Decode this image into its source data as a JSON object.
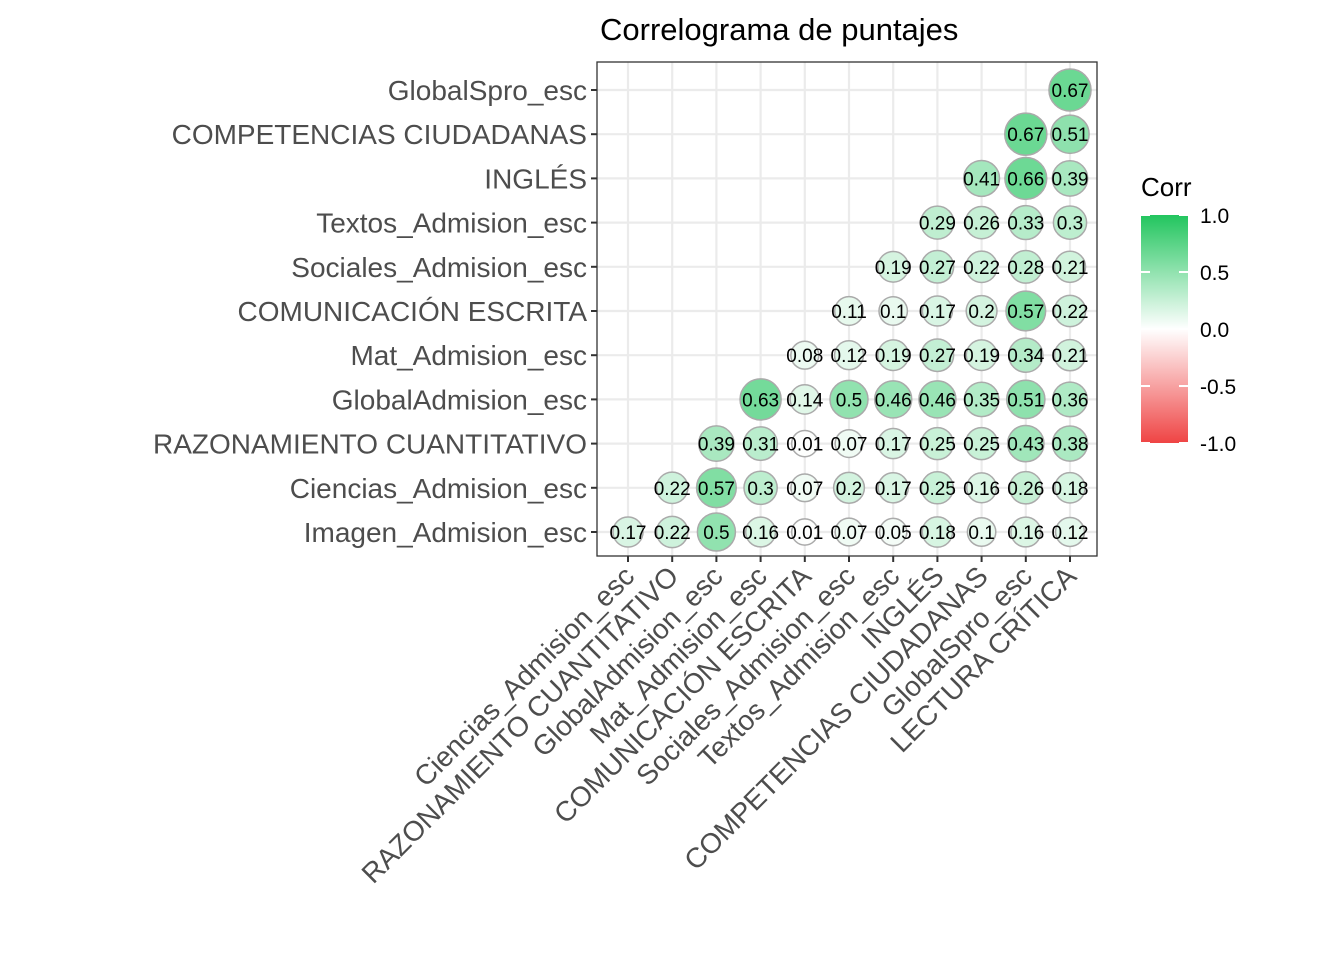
{
  "chart_data": {
    "type": "heatmap",
    "subtype": "correlogram-circles-lower-triangle",
    "title": "Correlograma de puntajes",
    "x_categories": [
      "Ciencias_Admision_esc",
      "RAZONAMIENTO CUANTITATIVO",
      "GlobalAdmision_esc",
      "Mat_Admision_esc",
      "COMUNICACIÓN ESCRITA",
      "Sociales_Admision_esc",
      "Textos_Admision_esc",
      "INGLÉS",
      "COMPETENCIAS CIUDADANAS",
      "GlobalSpro_esc",
      "LECTURA CRÍTICA"
    ],
    "y_categories": [
      "Imagen_Admision_esc",
      "Ciencias_Admision_esc",
      "RAZONAMIENTO CUANTITATIVO",
      "GlobalAdmision_esc",
      "Mat_Admision_esc",
      "COMUNICACIÓN ESCRITA",
      "Sociales_Admision_esc",
      "Textos_Admision_esc",
      "INGLÉS",
      "COMPETENCIAS CIUDADANAS",
      "GlobalSpro_esc"
    ],
    "cells": [
      {
        "x": "Ciencias_Admision_esc",
        "y": "Imagen_Admision_esc",
        "value": 0.17,
        "label": "0.17"
      },
      {
        "x": "RAZONAMIENTO CUANTITATIVO",
        "y": "Imagen_Admision_esc",
        "value": 0.22,
        "label": "0.22"
      },
      {
        "x": "GlobalAdmision_esc",
        "y": "Imagen_Admision_esc",
        "value": 0.5,
        "label": "0.5"
      },
      {
        "x": "Mat_Admision_esc",
        "y": "Imagen_Admision_esc",
        "value": 0.16,
        "label": "0.16"
      },
      {
        "x": "COMUNICACIÓN ESCRITA",
        "y": "Imagen_Admision_esc",
        "value": 0.01,
        "label": "0.01"
      },
      {
        "x": "Sociales_Admision_esc",
        "y": "Imagen_Admision_esc",
        "value": 0.07,
        "label": "0.07"
      },
      {
        "x": "Textos_Admision_esc",
        "y": "Imagen_Admision_esc",
        "value": 0.05,
        "label": "0.05"
      },
      {
        "x": "INGLÉS",
        "y": "Imagen_Admision_esc",
        "value": 0.18,
        "label": "0.18"
      },
      {
        "x": "COMPETENCIAS CIUDADANAS",
        "y": "Imagen_Admision_esc",
        "value": 0.1,
        "label": "0.1"
      },
      {
        "x": "GlobalSpro_esc",
        "y": "Imagen_Admision_esc",
        "value": 0.16,
        "label": "0.16"
      },
      {
        "x": "LECTURA CRÍTICA",
        "y": "Imagen_Admision_esc",
        "value": 0.12,
        "label": "0.12"
      },
      {
        "x": "RAZONAMIENTO CUANTITATIVO",
        "y": "Ciencias_Admision_esc",
        "value": 0.22,
        "label": "0.22"
      },
      {
        "x": "GlobalAdmision_esc",
        "y": "Ciencias_Admision_esc",
        "value": 0.57,
        "label": "0.57"
      },
      {
        "x": "Mat_Admision_esc",
        "y": "Ciencias_Admision_esc",
        "value": 0.3,
        "label": "0.3"
      },
      {
        "x": "COMUNICACIÓN ESCRITA",
        "y": "Ciencias_Admision_esc",
        "value": 0.07,
        "label": "0.07"
      },
      {
        "x": "Sociales_Admision_esc",
        "y": "Ciencias_Admision_esc",
        "value": 0.2,
        "label": "0.2"
      },
      {
        "x": "Textos_Admision_esc",
        "y": "Ciencias_Admision_esc",
        "value": 0.17,
        "label": "0.17"
      },
      {
        "x": "INGLÉS",
        "y": "Ciencias_Admision_esc",
        "value": 0.25,
        "label": "0.25"
      },
      {
        "x": "COMPETENCIAS CIUDADANAS",
        "y": "Ciencias_Admision_esc",
        "value": 0.16,
        "label": "0.16"
      },
      {
        "x": "GlobalSpro_esc",
        "y": "Ciencias_Admision_esc",
        "value": 0.26,
        "label": "0.26"
      },
      {
        "x": "LECTURA CRÍTICA",
        "y": "Ciencias_Admision_esc",
        "value": 0.18,
        "label": "0.18"
      },
      {
        "x": "GlobalAdmision_esc",
        "y": "RAZONAMIENTO CUANTITATIVO",
        "value": 0.39,
        "label": "0.39"
      },
      {
        "x": "Mat_Admision_esc",
        "y": "RAZONAMIENTO CUANTITATIVO",
        "value": 0.31,
        "label": "0.31"
      },
      {
        "x": "COMUNICACIÓN ESCRITA",
        "y": "RAZONAMIENTO CUANTITATIVO",
        "value": 0.01,
        "label": "0.01"
      },
      {
        "x": "Sociales_Admision_esc",
        "y": "RAZONAMIENTO CUANTITATIVO",
        "value": 0.07,
        "label": "0.07"
      },
      {
        "x": "Textos_Admision_esc",
        "y": "RAZONAMIENTO CUANTITATIVO",
        "value": 0.17,
        "label": "0.17"
      },
      {
        "x": "INGLÉS",
        "y": "RAZONAMIENTO CUANTITATIVO",
        "value": 0.25,
        "label": "0.25"
      },
      {
        "x": "COMPETENCIAS CIUDADANAS",
        "y": "RAZONAMIENTO CUANTITATIVO",
        "value": 0.25,
        "label": "0.25"
      },
      {
        "x": "GlobalSpro_esc",
        "y": "RAZONAMIENTO CUANTITATIVO",
        "value": 0.43,
        "label": "0.43"
      },
      {
        "x": "LECTURA CRÍTICA",
        "y": "RAZONAMIENTO CUANTITATIVO",
        "value": 0.38,
        "label": "0.38"
      },
      {
        "x": "Mat_Admision_esc",
        "y": "GlobalAdmision_esc",
        "value": 0.63,
        "label": "0.63"
      },
      {
        "x": "COMUNICACIÓN ESCRITA",
        "y": "GlobalAdmision_esc",
        "value": 0.14,
        "label": "0.14"
      },
      {
        "x": "Sociales_Admision_esc",
        "y": "GlobalAdmision_esc",
        "value": 0.5,
        "label": "0.5"
      },
      {
        "x": "Textos_Admision_esc",
        "y": "GlobalAdmision_esc",
        "value": 0.46,
        "label": "0.46"
      },
      {
        "x": "INGLÉS",
        "y": "GlobalAdmision_esc",
        "value": 0.46,
        "label": "0.46"
      },
      {
        "x": "COMPETENCIAS CIUDADANAS",
        "y": "GlobalAdmision_esc",
        "value": 0.35,
        "label": "0.35"
      },
      {
        "x": "GlobalSpro_esc",
        "y": "GlobalAdmision_esc",
        "value": 0.51,
        "label": "0.51"
      },
      {
        "x": "LECTURA CRÍTICA",
        "y": "GlobalAdmision_esc",
        "value": 0.36,
        "label": "0.36"
      },
      {
        "x": "COMUNICACIÓN ESCRITA",
        "y": "Mat_Admision_esc",
        "value": 0.08,
        "label": "0.08"
      },
      {
        "x": "Sociales_Admision_esc",
        "y": "Mat_Admision_esc",
        "value": 0.12,
        "label": "0.12"
      },
      {
        "x": "Textos_Admision_esc",
        "y": "Mat_Admision_esc",
        "value": 0.19,
        "label": "0.19"
      },
      {
        "x": "INGLÉS",
        "y": "Mat_Admision_esc",
        "value": 0.27,
        "label": "0.27"
      },
      {
        "x": "COMPETENCIAS CIUDADANAS",
        "y": "Mat_Admision_esc",
        "value": 0.19,
        "label": "0.19"
      },
      {
        "x": "GlobalSpro_esc",
        "y": "Mat_Admision_esc",
        "value": 0.34,
        "label": "0.34"
      },
      {
        "x": "LECTURA CRÍTICA",
        "y": "Mat_Admision_esc",
        "value": 0.21,
        "label": "0.21"
      },
      {
        "x": "Sociales_Admision_esc",
        "y": "COMUNICACIÓN ESCRITA",
        "value": 0.11,
        "label": "0.11"
      },
      {
        "x": "Textos_Admision_esc",
        "y": "COMUNICACIÓN ESCRITA",
        "value": 0.1,
        "label": "0.1"
      },
      {
        "x": "INGLÉS",
        "y": "COMUNICACIÓN ESCRITA",
        "value": 0.17,
        "label": "0.17"
      },
      {
        "x": "COMPETENCIAS CIUDADANAS",
        "y": "COMUNICACIÓN ESCRITA",
        "value": 0.2,
        "label": "0.2"
      },
      {
        "x": "GlobalSpro_esc",
        "y": "COMUNICACIÓN ESCRITA",
        "value": 0.57,
        "label": "0.57"
      },
      {
        "x": "LECTURA CRÍTICA",
        "y": "COMUNICACIÓN ESCRITA",
        "value": 0.22,
        "label": "0.22"
      },
      {
        "x": "Textos_Admision_esc",
        "y": "Sociales_Admision_esc",
        "value": 0.19,
        "label": "0.19"
      },
      {
        "x": "INGLÉS",
        "y": "Sociales_Admision_esc",
        "value": 0.27,
        "label": "0.27"
      },
      {
        "x": "COMPETENCIAS CIUDADANAS",
        "y": "Sociales_Admision_esc",
        "value": 0.22,
        "label": "0.22"
      },
      {
        "x": "GlobalSpro_esc",
        "y": "Sociales_Admision_esc",
        "value": 0.28,
        "label": "0.28"
      },
      {
        "x": "LECTURA CRÍTICA",
        "y": "Sociales_Admision_esc",
        "value": 0.21,
        "label": "0.21"
      },
      {
        "x": "INGLÉS",
        "y": "Textos_Admision_esc",
        "value": 0.29,
        "label": "0.29"
      },
      {
        "x": "COMPETENCIAS CIUDADANAS",
        "y": "Textos_Admision_esc",
        "value": 0.26,
        "label": "0.26"
      },
      {
        "x": "GlobalSpro_esc",
        "y": "Textos_Admision_esc",
        "value": 0.33,
        "label": "0.33"
      },
      {
        "x": "LECTURA CRÍTICA",
        "y": "Textos_Admision_esc",
        "value": 0.3,
        "label": "0.3"
      },
      {
        "x": "COMPETENCIAS CIUDADANAS",
        "y": "INGLÉS",
        "value": 0.41,
        "label": "0.41"
      },
      {
        "x": "GlobalSpro_esc",
        "y": "INGLÉS",
        "value": 0.66,
        "label": "0.66"
      },
      {
        "x": "LECTURA CRÍTICA",
        "y": "INGLÉS",
        "value": 0.39,
        "label": "0.39"
      },
      {
        "x": "GlobalSpro_esc",
        "y": "COMPETENCIAS CIUDADANAS",
        "value": 0.67,
        "label": "0.67"
      },
      {
        "x": "LECTURA CRÍTICA",
        "y": "COMPETENCIAS CIUDADANAS",
        "value": 0.51,
        "label": "0.51"
      },
      {
        "x": "LECTURA CRÍTICA",
        "y": "GlobalSpro_esc",
        "value": 0.67,
        "label": "0.67"
      }
    ],
    "legend": {
      "title": "Corr",
      "position": "right",
      "ticks": [
        1.0,
        0.5,
        0.0,
        -0.5,
        -1.0
      ],
      "tick_labels": [
        "1.0",
        "0.5",
        "0.0",
        "-0.5",
        "-1.0"
      ],
      "range": [
        -1,
        1
      ],
      "colors": {
        "high": "#22c55e",
        "mid": "#ffffff",
        "low": "#ef4444"
      }
    },
    "grid": true,
    "xlabel": "",
    "ylabel": "",
    "colors": {
      "panel_border": "#333333",
      "grid": "#ebebeb",
      "circle_stroke": "#aaaaaa",
      "axis_text": "#4d4d4d",
      "title_text": "#000000"
    }
  }
}
